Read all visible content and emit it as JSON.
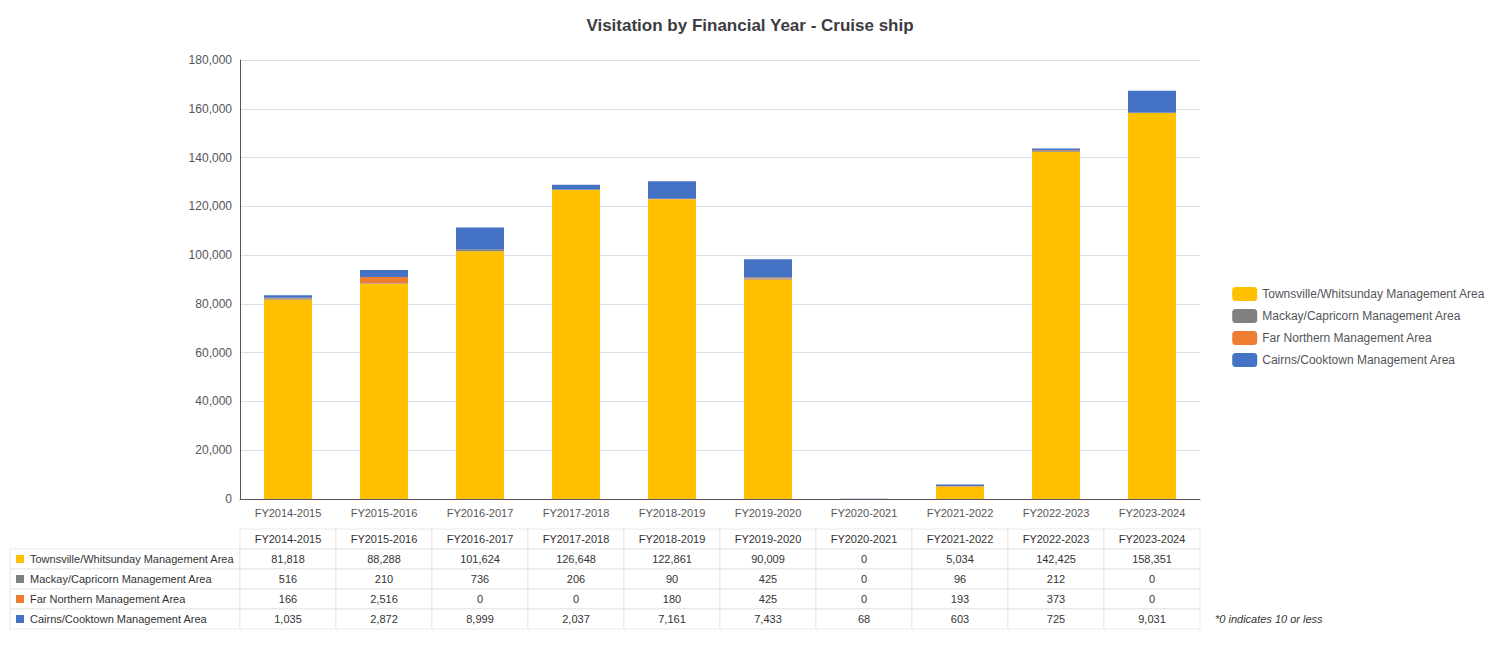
{
  "chart_data": {
    "type": "bar",
    "title": "Visitation by Financial Year - Cruise ship",
    "categories": [
      "FY2014-2015",
      "FY2015-2016",
      "FY2016-2017",
      "FY2017-2018",
      "FY2018-2019",
      "FY2019-2020",
      "FY2020-2021",
      "FY2021-2022",
      "FY2022-2023",
      "FY2023-2024"
    ],
    "series": [
      {
        "name": "Townsville/Whitsunday Management Area",
        "color": "#FFC000",
        "values": [
          81818,
          88288,
          101624,
          126648,
          122861,
          90009,
          0,
          5034,
          142425,
          158351
        ],
        "value_labels": [
          "81,818",
          "88,288",
          "101,624",
          "126,648",
          "122,861",
          "90,009",
          "0",
          "5,034",
          "142,425",
          "158,351"
        ]
      },
      {
        "name": "Mackay/Capricorn Management Area",
        "color": "#808080",
        "values": [
          516,
          210,
          736,
          206,
          90,
          425,
          0,
          96,
          212,
          0
        ],
        "value_labels": [
          "516",
          "210",
          "736",
          "206",
          "90",
          "425",
          "0",
          "96",
          "212",
          "0"
        ]
      },
      {
        "name": "Far Northern Management Area",
        "color": "#ED7D31",
        "values": [
          166,
          2516,
          0,
          0,
          180,
          425,
          0,
          193,
          373,
          0
        ],
        "value_labels": [
          "166",
          "2,516",
          "0",
          "0",
          "180",
          "425",
          "0",
          "193",
          "373",
          "0"
        ]
      },
      {
        "name": "Cairns/Cooktown Management Area",
        "color": "#4472C4",
        "values": [
          1035,
          2872,
          8999,
          2037,
          7161,
          7433,
          68,
          603,
          725,
          9031
        ],
        "value_labels": [
          "1,035",
          "2,872",
          "8,999",
          "2,037",
          "7,161",
          "7,433",
          "68",
          "603",
          "725",
          "9,031"
        ]
      }
    ],
    "ylim": [
      0,
      180000
    ],
    "yticks": [
      0,
      {
        "value": 20000,
        "label": "20,000"
      },
      {
        "value": 40000,
        "label": "40,000"
      },
      {
        "value": 60000,
        "label": "60,000"
      },
      {
        "value": 80000,
        "label": "80,000"
      },
      {
        "value": 100000,
        "label": "100,000"
      },
      {
        "value": 120000,
        "label": "120,000"
      },
      {
        "value": 140000,
        "label": "140,000"
      },
      {
        "value": 160000,
        "label": "160,000"
      },
      {
        "value": 180000,
        "label": "180,000"
      }
    ],
    "annotations": [
      "*0 indicates 10 or less"
    ],
    "stacked": true,
    "grid": true,
    "legend": "right"
  }
}
